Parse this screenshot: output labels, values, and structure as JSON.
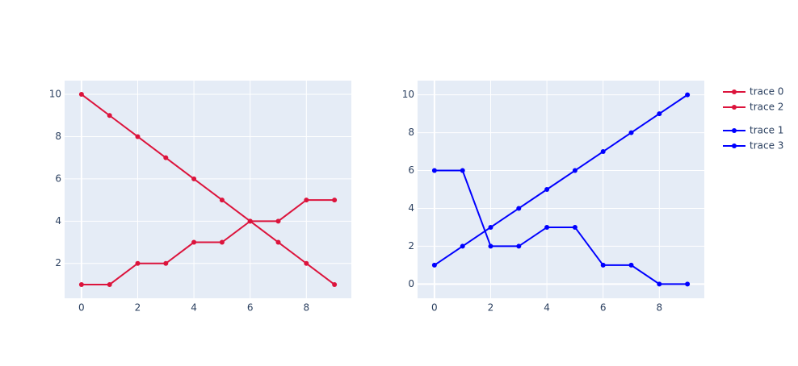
{
  "chart_data": [
    {
      "type": "line",
      "x": [
        0,
        1,
        2,
        3,
        4,
        5,
        6,
        7,
        8,
        9
      ],
      "series": [
        {
          "name": "trace 0",
          "color": "#dc143c",
          "values": [
            10,
            9,
            8,
            7,
            6,
            5,
            4,
            3,
            2,
            1
          ]
        },
        {
          "name": "trace 2",
          "color": "#dc143c",
          "values": [
            1,
            1,
            2,
            2,
            3,
            3,
            4,
            4,
            5,
            5
          ]
        }
      ],
      "xlim": [
        -0.6,
        9.6
      ],
      "xticks": [
        0,
        2,
        4,
        6,
        8
      ],
      "ylim": [
        0.35,
        10.65
      ],
      "yticks": [
        2,
        4,
        6,
        8,
        10
      ],
      "grid": true
    },
    {
      "type": "line",
      "x": [
        0,
        1,
        2,
        3,
        4,
        5,
        6,
        7,
        8,
        9
      ],
      "series": [
        {
          "name": "trace 1",
          "color": "#0000ff",
          "values": [
            1,
            2,
            3,
            4,
            5,
            6,
            7,
            8,
            9,
            10
          ]
        },
        {
          "name": "trace 3",
          "color": "#0000ff",
          "values": [
            6,
            6,
            2,
            2,
            3,
            3,
            1,
            1,
            0,
            0
          ]
        }
      ],
      "xlim": [
        -0.6,
        9.6
      ],
      "xticks": [
        0,
        2,
        4,
        6,
        8
      ],
      "ylim": [
        -0.75,
        10.75
      ],
      "yticks": [
        0,
        2,
        4,
        6,
        8,
        10
      ],
      "grid": true
    }
  ]
}
